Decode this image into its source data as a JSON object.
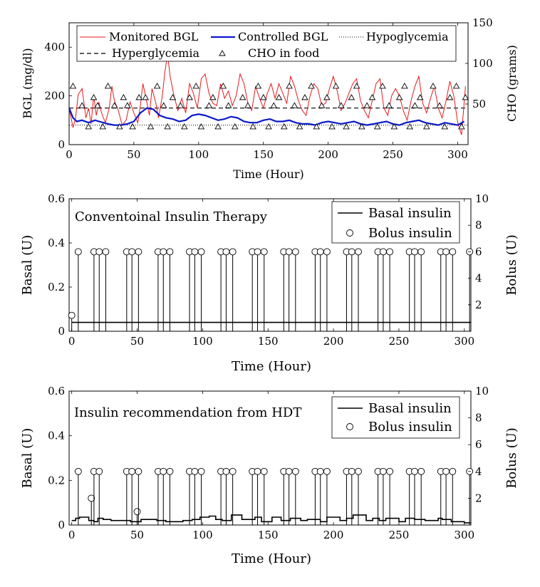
{
  "chart_data": [
    {
      "type": "line",
      "xlabel": "Time (Hour)",
      "ylabel": "BGL (mg/dl)",
      "ylabel_right": "CHO (grams)",
      "xlim": [
        0,
        308
      ],
      "ylim": [
        0,
        500
      ],
      "ylim_right": [
        0,
        150
      ],
      "xticks": [
        "0",
        "50",
        "100",
        "150",
        "200",
        "250",
        "300"
      ],
      "yticks": [
        "0",
        "200",
        "400"
      ],
      "yticks_right": [
        "50",
        "100",
        "150"
      ],
      "legend_position": "top",
      "legend": {
        "monitored": "Monitored BGL",
        "controlled": "Controlled BGL",
        "hypo": "Hypoglycemia",
        "hyper": "Hyperglycemia",
        "cho": "CHO in food"
      },
      "hyperglycemia_threshold": 150,
      "hypoglycemia_threshold": 80,
      "colors": {
        "monitored": "#e8191e",
        "controlled": "#0a19c8",
        "thresholds": "#000000"
      },
      "series": [
        {
          "name": "Monitored BGL",
          "x": [
            0,
            3,
            5,
            7,
            10,
            13,
            15,
            17,
            19,
            21,
            23,
            25,
            28,
            31,
            33,
            35,
            38,
            41,
            44,
            47,
            50,
            53,
            55,
            57,
            59,
            62,
            64,
            67,
            69,
            72,
            74,
            76,
            78,
            81,
            84,
            87,
            90,
            93,
            96,
            99,
            102,
            105,
            108,
            111,
            114,
            117,
            120,
            123,
            126,
            129,
            132,
            135,
            138,
            141,
            144,
            147,
            150,
            153,
            156,
            159,
            162,
            165,
            168,
            171,
            174,
            177,
            180,
            183,
            186,
            189,
            192,
            195,
            198,
            201,
            204,
            207,
            210,
            213,
            216,
            219,
            222,
            225,
            228,
            231,
            234,
            237,
            240,
            243,
            246,
            249,
            252,
            255,
            258,
            261,
            264,
            267,
            270,
            273,
            276,
            279,
            282,
            285,
            288,
            291,
            294,
            297,
            300,
            303,
            306
          ],
          "y": [
            150,
            70,
            110,
            205,
            230,
            110,
            150,
            85,
            200,
            120,
            175,
            130,
            90,
            150,
            240,
            180,
            140,
            80,
            100,
            175,
            130,
            90,
            160,
            250,
            200,
            120,
            230,
            170,
            110,
            200,
            300,
            370,
            280,
            200,
            140,
            190,
            130,
            250,
            210,
            150,
            270,
            290,
            210,
            170,
            160,
            250,
            190,
            220,
            160,
            200,
            290,
            250,
            170,
            140,
            240,
            190,
            150,
            210,
            250,
            190,
            250,
            210,
            170,
            280,
            240,
            180,
            140,
            120,
            200,
            250,
            230,
            160,
            170,
            230,
            280,
            220,
            140,
            170,
            210,
            250,
            270,
            180,
            140,
            110,
            180,
            250,
            270,
            150,
            120,
            200,
            230,
            200,
            140,
            100,
            180,
            240,
            280,
            170,
            130,
            190,
            240,
            150,
            110,
            180,
            260,
            200,
            90,
            40,
            240
          ]
        },
        {
          "name": "Controlled BGL",
          "x": [
            0,
            3,
            6,
            10,
            15,
            20,
            25,
            30,
            35,
            40,
            45,
            50,
            55,
            60,
            65,
            70,
            75,
            80,
            85,
            90,
            95,
            100,
            105,
            110,
            115,
            120,
            125,
            130,
            135,
            140,
            145,
            150,
            155,
            160,
            165,
            170,
            175,
            180,
            185,
            190,
            195,
            200,
            205,
            210,
            215,
            220,
            225,
            230,
            235,
            240,
            245,
            250,
            255,
            260,
            265,
            270,
            275,
            280,
            285,
            290,
            295,
            300,
            305
          ],
          "y": [
            150,
            110,
            95,
            100,
            90,
            100,
            92,
            85,
            80,
            80,
            85,
            95,
            130,
            150,
            145,
            120,
            110,
            105,
            95,
            100,
            120,
            125,
            120,
            110,
            100,
            105,
            115,
            110,
            95,
            90,
            90,
            100,
            105,
            95,
            95,
            100,
            90,
            85,
            85,
            80,
            90,
            95,
            90,
            85,
            90,
            95,
            85,
            80,
            85,
            90,
            95,
            85,
            80,
            90,
            95,
            100,
            90,
            85,
            80,
            90,
            85,
            80,
            95
          ]
        },
        {
          "name": "CHO in food",
          "marker": "triangle",
          "x": [
            3,
            10,
            15,
            19,
            22,
            26,
            30,
            35,
            39,
            42,
            45,
            49,
            54,
            59,
            63,
            68,
            73,
            76,
            80,
            86,
            89,
            93,
            98,
            102,
            108,
            111,
            115,
            119,
            123,
            128,
            134,
            138,
            142,
            146,
            150,
            154,
            158,
            162,
            166,
            170,
            174,
            178,
            182,
            187,
            191,
            195,
            199,
            203,
            206,
            210,
            214,
            218,
            222,
            226,
            230,
            234,
            238,
            242,
            247,
            251,
            255,
            259,
            263,
            267,
            271,
            276,
            281,
            286,
            290,
            294,
            299,
            303,
            306
          ],
          "y": [
            72,
            48,
            22,
            58,
            48,
            22,
            72,
            48,
            22,
            58,
            48,
            22,
            58,
            58,
            22,
            72,
            48,
            22,
            58,
            48,
            22,
            58,
            72,
            22,
            48,
            58,
            22,
            72,
            48,
            22,
            58,
            48,
            22,
            72,
            58,
            22,
            48,
            58,
            22,
            72,
            48,
            22,
            58,
            72,
            22,
            48,
            58,
            22,
            72,
            48,
            22,
            58,
            72,
            22,
            48,
            58,
            22,
            72,
            48,
            22,
            58,
            72,
            22,
            48,
            58,
            22,
            72,
            48,
            22,
            58,
            72,
            22,
            58
          ]
        }
      ]
    },
    {
      "type": "line",
      "annotation": "Conventoinal Insulin Therapy",
      "xlabel": "Time (Hour)",
      "ylabel": "Basal (U)",
      "ylabel_right": "Bolus (U)",
      "xlim": [
        -2,
        305
      ],
      "ylim": [
        0,
        0.6
      ],
      "ylim_right": [
        0,
        10
      ],
      "xticks": [
        "0",
        "50",
        "100",
        "150",
        "200",
        "250",
        "300"
      ],
      "yticks": [
        "0",
        "0.2",
        "0.4",
        "0.6"
      ],
      "yticks_right": [
        "2",
        "4",
        "6",
        "8",
        "10"
      ],
      "legend_position": "top-right",
      "legend": {
        "basal": "Basal insulin",
        "bolus": "Bolus insulin"
      },
      "series": [
        {
          "name": "Basal insulin",
          "x": [
            0,
            305
          ],
          "y": [
            0.04,
            0.04
          ]
        },
        {
          "name": "Bolus insulin",
          "marker": "circle",
          "x": [
            0,
            5,
            17,
            21,
            26,
            42,
            46,
            51,
            66,
            70,
            75,
            90,
            94,
            99,
            114,
            118,
            123,
            138,
            142,
            147,
            162,
            166,
            171,
            186,
            190,
            195,
            210,
            214,
            219,
            234,
            238,
            243,
            258,
            262,
            267,
            282,
            286,
            291,
            304
          ],
          "y": [
            1.2,
            6,
            6,
            6,
            6,
            6,
            6,
            6,
            6,
            6,
            6,
            6,
            6,
            6,
            6,
            6,
            6,
            6,
            6,
            6,
            6,
            6,
            6,
            6,
            6,
            6,
            6,
            6,
            6,
            6,
            6,
            6,
            6,
            6,
            6,
            6,
            6,
            6,
            6
          ]
        }
      ]
    },
    {
      "type": "line",
      "annotation": "Insulin recommendation from HDT",
      "xlabel": "Time (Hour)",
      "ylabel": "Basal (U)",
      "ylabel_right": "Bolus (U)",
      "xlim": [
        -2,
        305
      ],
      "ylim": [
        0,
        0.6
      ],
      "ylim_right": [
        0,
        10
      ],
      "xticks": [
        "0",
        "50",
        "100",
        "150",
        "200",
        "250",
        "300"
      ],
      "yticks": [
        "0",
        "0.2",
        "0.4",
        "0.6"
      ],
      "yticks_right": [
        "2",
        "4",
        "6",
        "8",
        "10"
      ],
      "legend_position": "top-right",
      "legend": {
        "basal": "Basal insulin",
        "bolus": "Bolus insulin"
      },
      "series": [
        {
          "name": "Basal insulin",
          "x": [
            0,
            3,
            6,
            13,
            17,
            20,
            24,
            30,
            40,
            45,
            53,
            65,
            72,
            85,
            92,
            98,
            105,
            110,
            115,
            122,
            130,
            140,
            145,
            153,
            160,
            167,
            175,
            180,
            190,
            195,
            205,
            210,
            215,
            225,
            230,
            235,
            240,
            250,
            255,
            262,
            270,
            280,
            283,
            290,
            300,
            305
          ],
          "y": [
            0.02,
            0.03,
            0.035,
            0.02,
            0.015,
            0.03,
            0.025,
            0.02,
            0.02,
            0.015,
            0.025,
            0.02,
            0.015,
            0.02,
            0.025,
            0.035,
            0.04,
            0.025,
            0.02,
            0.045,
            0.025,
            0.035,
            0.015,
            0.035,
            0.02,
            0.03,
            0.02,
            0.025,
            0.015,
            0.035,
            0.02,
            0.03,
            0.045,
            0.02,
            0.03,
            0.02,
            0.03,
            0.015,
            0.03,
            0.025,
            0.02,
            0.03,
            0.025,
            0.015,
            0.01,
            0.01
          ]
        },
        {
          "name": "Bolus insulin",
          "marker": "circle",
          "x": [
            5,
            15,
            17,
            21,
            42,
            46,
            50,
            51,
            66,
            70,
            75,
            90,
            94,
            99,
            114,
            118,
            123,
            138,
            142,
            147,
            162,
            166,
            171,
            186,
            190,
            195,
            210,
            214,
            219,
            234,
            238,
            243,
            258,
            262,
            267,
            282,
            286,
            291,
            304
          ],
          "y": [
            4,
            2,
            4,
            4,
            4,
            4,
            1,
            4,
            4,
            4,
            4,
            4,
            4,
            4,
            4,
            4,
            4,
            4,
            4,
            4,
            4,
            4,
            4,
            4,
            4,
            4,
            4,
            4,
            4,
            4,
            4,
            4,
            4,
            4,
            4,
            4,
            4,
            4,
            4
          ]
        }
      ]
    }
  ]
}
